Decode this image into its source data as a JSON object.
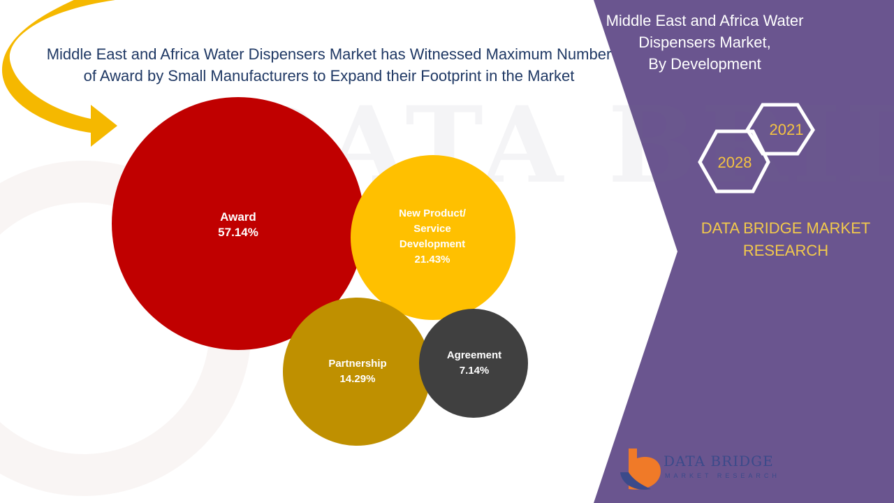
{
  "headline": "Middle East and Africa Water Dispensers Market has Witnessed Maximum Number of Award by Small Manufacturers to Expand their Footprint in the Market",
  "side_panel": {
    "title_line1": "Middle East and Africa Water",
    "title_line2": "Dispensers Market,",
    "title_line3": "By Development",
    "year_start": "2021",
    "year_end": "2028",
    "brand_line1": "DATA BRIDGE MARKET",
    "brand_line2": "RESEARCH"
  },
  "logo": {
    "name": "DATA BRIDGE",
    "tagline": "MARKET RESEARCH"
  },
  "colors": {
    "panel": "#6a558f",
    "award": "#c00000",
    "new_product": "#ffc000",
    "partnership": "#bf9000",
    "agreement": "#404040",
    "arrow": "#f5b800",
    "brand_gold": "#f2c94c"
  },
  "chart_data": {
    "type": "bubble",
    "title": "Middle East and Africa Water Dispensers Market, By Development",
    "categories": [
      "Award",
      "New Product/ Service Development",
      "Partnership",
      "Agreement"
    ],
    "values": [
      57.14,
      21.43,
      14.29,
      7.14
    ],
    "labels": [
      "Award",
      "New Product/\nService\nDevelopment",
      "Partnership",
      "Agreement"
    ],
    "value_labels": [
      "57.14%",
      "21.43%",
      "14.29%",
      "7.14%"
    ],
    "unit": "%"
  }
}
